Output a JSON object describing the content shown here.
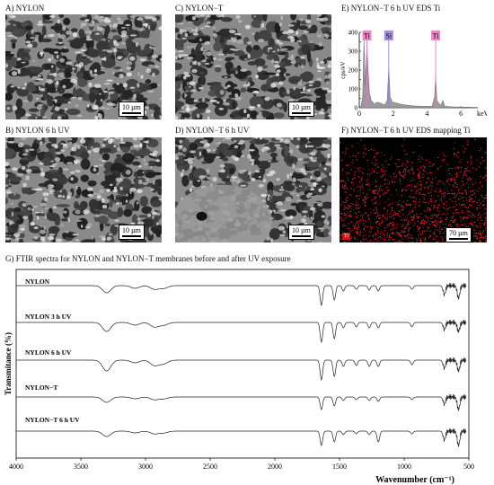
{
  "panels": {
    "a": {
      "label": "A) NYLON",
      "scale": "10 µm"
    },
    "b": {
      "label": "B) NYLON 6 h UV",
      "scale": "10 µm"
    },
    "c": {
      "label": "C) NYLON−T",
      "scale": "10 µm"
    },
    "d": {
      "label": "D) NYLON−T 6 h UV",
      "scale": "10 µm"
    },
    "e": {
      "label": "E) NYLON−T 6 h UV EDS Ti"
    },
    "f": {
      "label": "F) NYLON−T 6 h UV EDS mapping Ti",
      "scale": "70 µm",
      "tag": "Ti"
    },
    "g": {
      "label": "G) FTIR spectra for NYLON and NYLON−T membranes before and after UV exposure"
    }
  },
  "chart_data": [
    {
      "type": "line",
      "title": "",
      "xlabel": "keV",
      "ylabel": "cps/eV",
      "xlim": [
        0,
        7
      ],
      "ylim": [
        0,
        400
      ],
      "x_ticks": [
        0,
        2,
        4,
        6
      ],
      "y_ticks": [
        0,
        50,
        100,
        150,
        200,
        250,
        300,
        350,
        400
      ],
      "peak_labels": [
        {
          "text": "Ti",
          "x": 0.45,
          "color": "#e47bc0"
        },
        {
          "text": "Si",
          "x": 1.74,
          "color": "#9b7fe0"
        },
        {
          "text": "Ti",
          "x": 4.51,
          "color": "#e47bc0"
        }
      ],
      "series": [
        {
          "values": [
            [
              0.0,
              0
            ],
            [
              0.1,
              8
            ],
            [
              0.2,
              60
            ],
            [
              0.28,
              360
            ],
            [
              0.35,
              120
            ],
            [
              0.45,
              330
            ],
            [
              0.52,
              200
            ],
            [
              0.6,
              80
            ],
            [
              0.7,
              40
            ],
            [
              0.9,
              20
            ],
            [
              1.05,
              30
            ],
            [
              1.25,
              25
            ],
            [
              1.5,
              15
            ],
            [
              1.65,
              40
            ],
            [
              1.74,
              210
            ],
            [
              1.82,
              60
            ],
            [
              1.95,
              30
            ],
            [
              2.2,
              25
            ],
            [
              2.5,
              18
            ],
            [
              2.8,
              14
            ],
            [
              3.2,
              10
            ],
            [
              3.7,
              8
            ],
            [
              4.3,
              8
            ],
            [
              4.45,
              60
            ],
            [
              4.51,
              175
            ],
            [
              4.58,
              40
            ],
            [
              4.8,
              12
            ],
            [
              4.93,
              40
            ],
            [
              5.05,
              8
            ],
            [
              5.5,
              5
            ],
            [
              6.0,
              4
            ],
            [
              6.5,
              3
            ],
            [
              7.0,
              2
            ]
          ]
        }
      ]
    },
    {
      "type": "line",
      "title": "",
      "xlabel": "Wavenumber (cm⁻¹)",
      "ylabel": "Transmitance (%)",
      "xlim": [
        4000,
        500
      ],
      "x_ticks": [
        4000,
        3500,
        3000,
        2500,
        2000,
        1500,
        1000,
        500
      ],
      "series": [
        {
          "name": "NYLON"
        },
        {
          "name": "NYLON  3 h UV"
        },
        {
          "name": "NYLON 6 h UV"
        },
        {
          "name": "NYLON−T"
        },
        {
          "name": "NYLON−T 6 h UV"
        }
      ],
      "peak_positions": [
        3300,
        3080,
        2930,
        2860,
        1640,
        1540,
        1470,
        1370,
        1270,
        1200,
        940,
        690,
        580
      ]
    }
  ]
}
